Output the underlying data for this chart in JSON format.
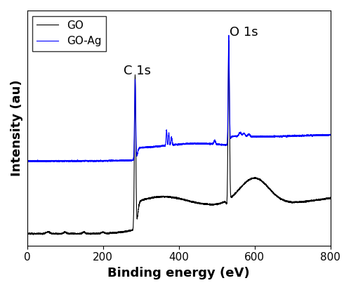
{
  "xlim": [
    0,
    800
  ],
  "xlabel": "Binding energy (eV)",
  "ylabel": "Intensity (au)",
  "legend_entries": [
    "GO",
    "GO-Ag"
  ],
  "legend_colors": [
    "black",
    "blue"
  ],
  "annotation_C1s": "C 1s",
  "annotation_O1s": "O 1s",
  "C1s_energy": 285,
  "O1s_energy": 532,
  "xlabel_fontsize": 13,
  "ylabel_fontsize": 13,
  "tick_fontsize": 11,
  "legend_fontsize": 11,
  "annotation_fontsize": 13
}
